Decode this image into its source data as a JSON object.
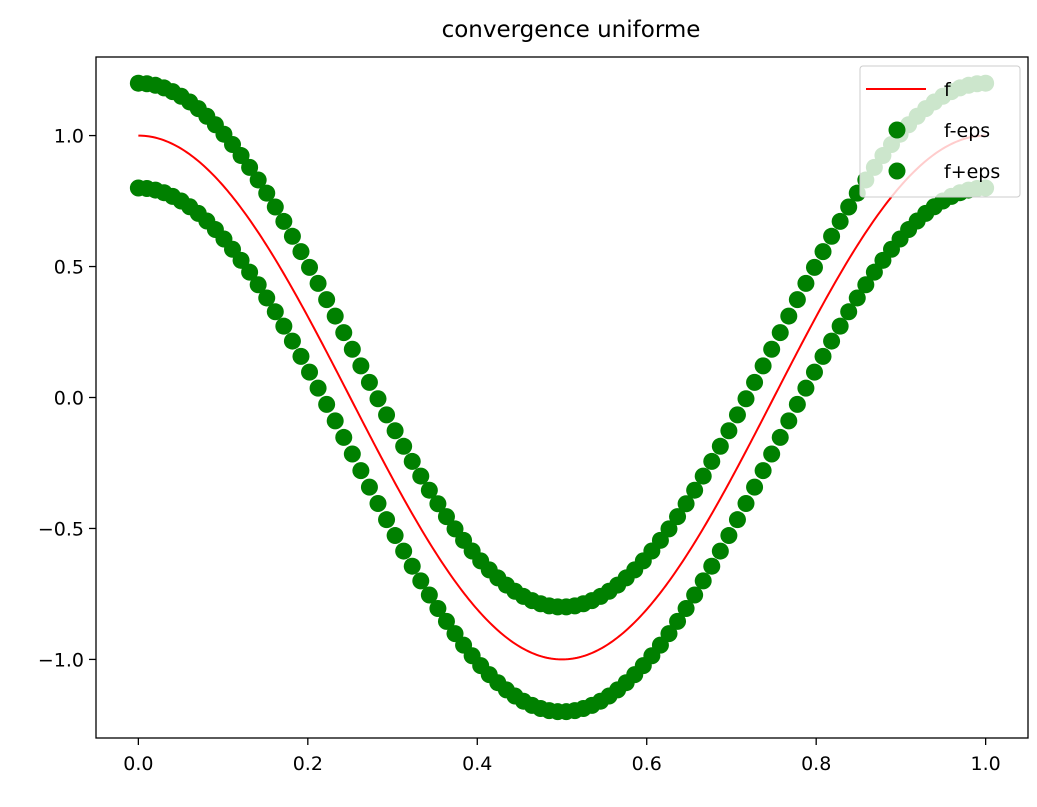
{
  "chart_data": {
    "type": "line",
    "title": "convergence uniforme",
    "xlabel": "",
    "ylabel": "",
    "xlim": [
      -0.05,
      1.05
    ],
    "ylim": [
      -1.3,
      1.3
    ],
    "x_ticks": [
      0.0,
      0.2,
      0.4,
      0.6,
      0.8,
      1.0
    ],
    "x_tick_labels": [
      "0.0",
      "0.2",
      "0.4",
      "0.6",
      "0.8",
      "1.0"
    ],
    "y_ticks": [
      1.0,
      0.5,
      0.0,
      -0.5,
      -1.0
    ],
    "y_tick_labels": [
      "1.0",
      "0.5",
      "0.0",
      "−0.5",
      "−1.0"
    ],
    "grid": false,
    "legend_position": "top-right",
    "function": "cos(2*pi*x)",
    "x_range": [
      0,
      1
    ],
    "eps": 0.2,
    "marker_count": 100,
    "series": [
      {
        "name": "f",
        "kind": "line",
        "color": "#ff0000",
        "offset": 0
      },
      {
        "name": "f-eps",
        "kind": "markers",
        "color": "#008000",
        "offset": 0.2
      },
      {
        "name": "f+eps",
        "kind": "markers",
        "color": "#008000",
        "offset": -0.2
      }
    ]
  }
}
